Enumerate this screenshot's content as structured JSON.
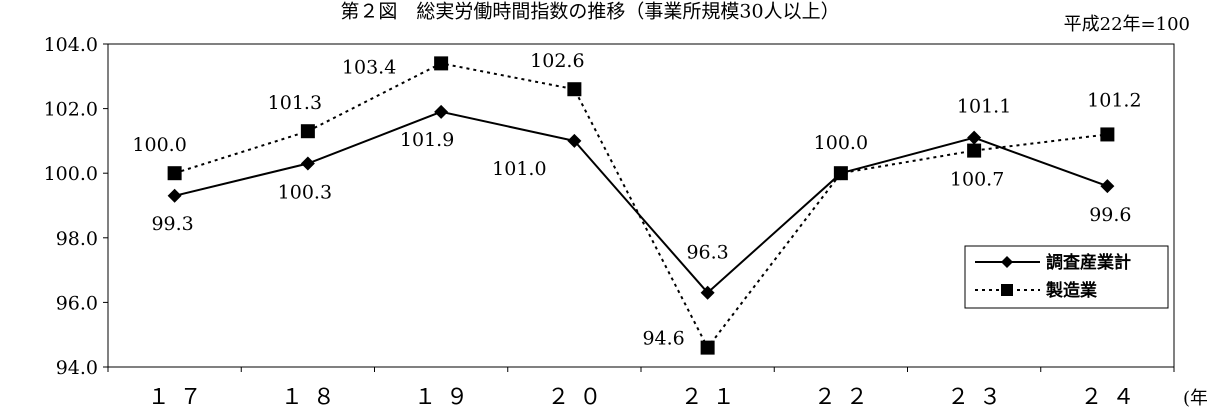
{
  "chart_data": {
    "type": "line",
    "title": "第２図　総実労働時間指数の推移（事業所規模30人以上）",
    "base_note": "平成22年=100",
    "xunit": "(年)",
    "categories": [
      "１７",
      "１８",
      "１９",
      "２０",
      "２１",
      "２２",
      "２３",
      "２４"
    ],
    "yticks": [
      "94.0",
      "96.0",
      "98.0",
      "100.0",
      "102.0",
      "104.0"
    ],
    "ylim": [
      94,
      104
    ],
    "grid": false,
    "legend_position": "right-bottom",
    "series": [
      {
        "name": "調査産業計",
        "style": "solid",
        "marker": "diamond",
        "values": [
          99.3,
          100.3,
          101.9,
          101.0,
          96.3,
          100.0,
          101.1,
          99.6
        ],
        "labels": [
          "99.3",
          "100.3",
          "101.9",
          "101.0",
          "96.3",
          "",
          "101.1",
          "99.6"
        ]
      },
      {
        "name": "製造業",
        "style": "dotted",
        "marker": "square",
        "values": [
          100.0,
          101.3,
          103.4,
          102.6,
          94.6,
          100.0,
          100.7,
          101.2
        ],
        "labels": [
          "100.0",
          "101.3",
          "103.4",
          "102.6",
          "94.6",
          "100.0",
          "100.7",
          "101.2"
        ]
      }
    ]
  }
}
